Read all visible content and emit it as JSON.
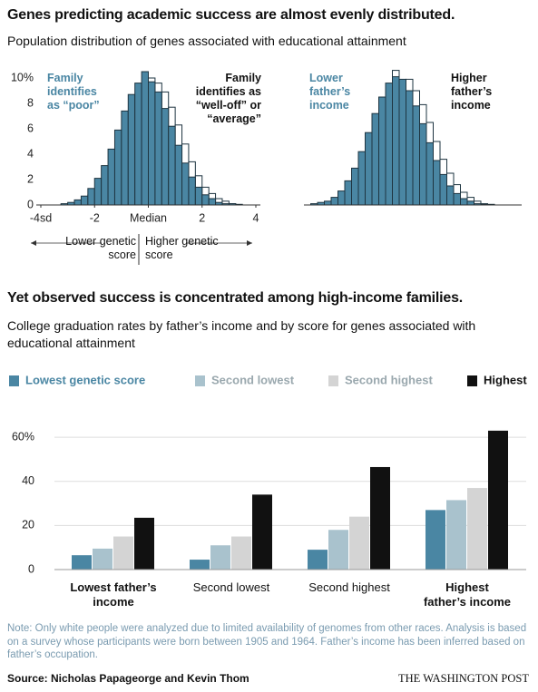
{
  "chart_data": [
    {
      "type": "histogram",
      "title": "Genes predicting academic success are almost evenly distributed.",
      "subtitle": "Population distribution of genes associated with educational attainment",
      "bins": [
        -3.25,
        -3,
        -2.75,
        -2.5,
        -2.25,
        -2,
        -1.75,
        -1.5,
        -1.25,
        -1,
        -0.75,
        -0.5,
        -0.25,
        0,
        0.25,
        0.5,
        0.75,
        1,
        1.25,
        1.5,
        1.75,
        2,
        2.25,
        2.5,
        2.75,
        3,
        3.25,
        3.5
      ],
      "series": [
        {
          "name": "Family identifies as “poor”",
          "color": "#4a86a3",
          "values": [
            0.1,
            0.2,
            0.4,
            0.7,
            1.3,
            2.1,
            3.1,
            4.4,
            5.9,
            7.4,
            8.7,
            9.6,
            10.5,
            9.7,
            8.9,
            7.6,
            6.2,
            4.7,
            3.3,
            2.2,
            1.4,
            0.8,
            0.5,
            0.2,
            0.1,
            0.1,
            0
          ]
        },
        {
          "name": "Family identifies as “well-off” or “average”",
          "color": "#ffffff",
          "values": [
            0.05,
            0.1,
            0.2,
            0.4,
            0.8,
            1.3,
            2.1,
            3.1,
            4.5,
            5.9,
            7.4,
            8.6,
            9.5,
            10,
            9.6,
            8.9,
            7.7,
            6.3,
            4.8,
            3.4,
            2.3,
            1.4,
            0.9,
            0.5,
            0.3,
            0.1,
            0.05
          ]
        }
      ],
      "xlim": [
        -4,
        4
      ],
      "xticks": [
        {
          "value": -4,
          "label": "-4sd"
        },
        -2,
        {
          "value": 0,
          "label": "Median"
        },
        2,
        4
      ],
      "ylim": [
        0,
        10.5
      ],
      "yticks": [
        0,
        2,
        4,
        6,
        8,
        {
          "value": 10,
          "label": "10%"
        }
      ],
      "annotations": [
        "Lower genetic score",
        "Higher genetic score"
      ]
    },
    {
      "type": "histogram",
      "bins": [
        -3.25,
        -3,
        -2.75,
        -2.5,
        -2.25,
        -2,
        -1.75,
        -1.5,
        -1.25,
        -1,
        -0.75,
        -0.5,
        -0.25,
        0,
        0.25,
        0.5,
        0.75,
        1,
        1.25,
        1.5,
        1.75,
        2,
        2.25,
        2.5,
        2.75,
        3,
        3.25,
        3.5
      ],
      "series": [
        {
          "name": "Lower father’s income",
          "color": "#4a86a3",
          "values": [
            0.1,
            0.2,
            0.3,
            0.6,
            1.1,
            1.9,
            2.9,
            4.2,
            5.7,
            7.2,
            8.5,
            9.6,
            10.1,
            9.9,
            9.0,
            7.8,
            6.4,
            4.9,
            3.5,
            2.4,
            1.5,
            0.9,
            0.5,
            0.3,
            0.1,
            0.05,
            0
          ]
        },
        {
          "name": "Higher father’s income",
          "color": "#ffffff",
          "values": [
            0.05,
            0.1,
            0.2,
            0.4,
            0.7,
            1.2,
            2.0,
            3.0,
            4.3,
            5.8,
            7.3,
            8.6,
            10.6,
            9.8,
            9.9,
            9.0,
            7.9,
            6.5,
            5.0,
            3.6,
            2.5,
            1.6,
            1.0,
            0.6,
            0.3,
            0.1,
            0.05
          ]
        }
      ],
      "xlim": [
        -4,
        4
      ],
      "ylim": [
        0,
        10.5
      ]
    },
    {
      "type": "bar",
      "title": "Yet observed success is concentrated among high-income families.",
      "subtitle": "College graduation rates by father’s income and by score for genes associated with educational attainment",
      "categories": [
        "Lowest father’s income",
        "Second lowest",
        "Second highest",
        "Highest father’s income"
      ],
      "series": [
        {
          "name": "Lowest genetic score",
          "color": "#4a86a3",
          "values": [
            6.5,
            4.5,
            9,
            27
          ]
        },
        {
          "name": "Second lowest",
          "color": "#a9c2cd",
          "values": [
            9.5,
            11,
            18,
            31.5
          ]
        },
        {
          "name": "Second highest",
          "color": "#d4d4d4",
          "values": [
            15,
            15,
            24,
            37
          ]
        },
        {
          "name": "Highest",
          "color": "#111111",
          "values": [
            23.5,
            34,
            46.5,
            63
          ]
        }
      ],
      "ylim": [
        0,
        65
      ],
      "yticks": [
        0,
        20,
        40,
        {
          "value": 60,
          "label": "60%"
        }
      ],
      "grid": true
    }
  ],
  "footer": {
    "note": "Note: Only white people were analyzed due to limited availability of genomes from other races. Analysis is based on a survey whose participants were born between 1905 and 1964. Father’s income has been inferred based on father’s occupation.",
    "source": "Source: Nicholas Papageorge and Kevin Thom",
    "credit": "THE WASHINGTON POST"
  }
}
